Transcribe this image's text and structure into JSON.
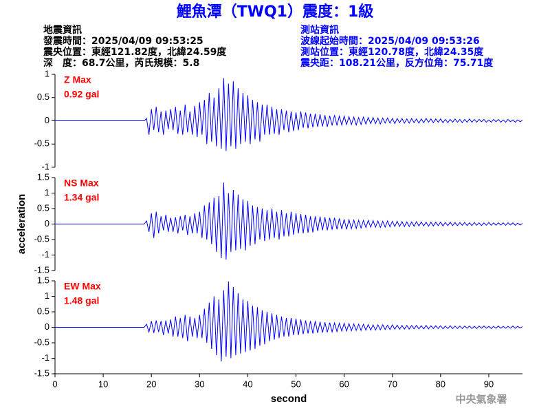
{
  "header": {
    "title": "鯉魚潭（TWQ1）震度：1級",
    "left": [
      "地震資訊",
      "發震時間：2025/04/09 09:53:25",
      "震央位置：東經121.82度，北緯24.59度",
      "深　度：68.7公里，芮氏規模：5.8"
    ],
    "right": [
      "測站資訊",
      "波線起始時間：2025/04/09 09:53:26",
      "測站位置：東經120.78度，北緯24.35度",
      "震央距：108.21公里，反方位角：75.71度"
    ],
    "footer": "中央氣象署"
  },
  "chart_data": [
    {
      "type": "line",
      "color": "#0000ff",
      "annotations": [
        "Z Max",
        "0.92 gal"
      ],
      "xlim": [
        0,
        97
      ],
      "ylim": [
        -1,
        1
      ],
      "yticks": [
        -1,
        -0.5,
        0,
        0.5,
        1
      ],
      "x": [
        0,
        18.5,
        19,
        19.5,
        20,
        20.5,
        21,
        21.5,
        22,
        22.5,
        23,
        23.5,
        24,
        24.5,
        25,
        25.5,
        26,
        26.5,
        27,
        27.5,
        28,
        28.5,
        29,
        29.5,
        30,
        30.5,
        31,
        31.5,
        32,
        32.5,
        33,
        33.5,
        34,
        34.5,
        35,
        35.5,
        36,
        36.5,
        37,
        37.5,
        38,
        38.5,
        39,
        39.5,
        40,
        40.5,
        41,
        41.5,
        42,
        42.5,
        43,
        43.5,
        44,
        44.5,
        45,
        45.5,
        46,
        46.5,
        47,
        47.5,
        48,
        48.5,
        49,
        49.5,
        50,
        50.5,
        51,
        51.5,
        52,
        52.5,
        53,
        53.5,
        54,
        54.5,
        55,
        55.5,
        56,
        56.5,
        57,
        57.5,
        58,
        58.5,
        59,
        59.5,
        60,
        60.5,
        61,
        61.5,
        62,
        62.5,
        63,
        63.5,
        64,
        64.5,
        65,
        65.5,
        66,
        66.5,
        67,
        67.5,
        68,
        68.5,
        69,
        69.5,
        70,
        70.5,
        71,
        71.5,
        72,
        72.5,
        73,
        73.5,
        74,
        74.5,
        75,
        75.5,
        76,
        76.5,
        77,
        77.5,
        78,
        78.5,
        79,
        79.5,
        80,
        80.5,
        81,
        81.5,
        82,
        82.5,
        83,
        83.5,
        84,
        84.5,
        85,
        85.5,
        86,
        86.5,
        87,
        87.5,
        88,
        88.5,
        89,
        89.5,
        90,
        90.5,
        91,
        91.5,
        92,
        92.5,
        93,
        93.5,
        94,
        94.5,
        95,
        95.5,
        96,
        96.5,
        97
      ],
      "values": [
        0,
        0,
        0.05,
        -0.3,
        0.25,
        -0.2,
        0.3,
        -0.25,
        0.2,
        -0.3,
        0.22,
        -0.18,
        0.25,
        -0.2,
        0.3,
        -0.28,
        0.22,
        -0.3,
        0.35,
        -0.25,
        0.2,
        -0.3,
        0.32,
        -0.35,
        0.4,
        -0.3,
        0.45,
        -0.5,
        0.6,
        -0.45,
        0.5,
        -0.55,
        0.7,
        -0.6,
        0.92,
        -0.65,
        0.8,
        -0.55,
        0.85,
        -0.6,
        0.7,
        -0.5,
        0.6,
        -0.45,
        0.55,
        -0.5,
        0.45,
        -0.4,
        0.4,
        -0.45,
        0.35,
        -0.3,
        0.35,
        -0.3,
        0.3,
        -0.28,
        0.25,
        -0.3,
        0.25,
        -0.2,
        0.22,
        -0.25,
        0.2,
        -0.22,
        0.18,
        -0.2,
        0.2,
        -0.15,
        0.18,
        -0.16,
        0.15,
        -0.14,
        0.15,
        -0.13,
        0.14,
        -0.12,
        0.12,
        -0.13,
        0.11,
        -0.1,
        0.12,
        -0.1,
        0.1,
        -0.09,
        0.1,
        -0.08,
        0.09,
        -0.08,
        0.08,
        -0.09,
        0.07,
        -0.08,
        0.08,
        -0.07,
        0.07,
        -0.06,
        0.07,
        -0.06,
        0.06,
        -0.07,
        0.06,
        -0.05,
        0.06,
        -0.05,
        0.05,
        -0.06,
        0.05,
        -0.04,
        0.05,
        -0.05,
        0.04,
        -0.05,
        0.05,
        -0.04,
        0.04,
        -0.05,
        0.04,
        -0.04,
        0.05,
        -0.03,
        0.04,
        -0.04,
        0.04,
        -0.03,
        0.04,
        -0.04,
        0.03,
        -0.04,
        0.03,
        -0.03,
        0.04,
        -0.03,
        0.03,
        -0.04,
        0.03,
        -0.03,
        0.04,
        -0.03,
        0.03,
        -0.03,
        0.03,
        -0.02,
        0.03,
        -0.03,
        0.02,
        -0.03,
        0.03,
        -0.02,
        0.03,
        -0.03,
        0.02,
        -0.03,
        0.03,
        -0.02,
        0.02,
        -0.03,
        0.02,
        -0.02,
        0.01
      ]
    },
    {
      "type": "line",
      "color": "#0000ff",
      "annotations": [
        "NS Max",
        "1.34 gal"
      ],
      "ylabel": "acceleration",
      "xlim": [
        0,
        97
      ],
      "ylim": [
        -1.5,
        1.5
      ],
      "yticks": [
        -1.5,
        -1,
        -0.5,
        0,
        0.5,
        1,
        1.5
      ],
      "x": [
        0,
        18.5,
        19,
        19.5,
        20,
        20.5,
        21,
        21.5,
        22,
        22.5,
        23,
        23.5,
        24,
        24.5,
        25,
        25.5,
        26,
        26.5,
        27,
        27.5,
        28,
        28.5,
        29,
        29.5,
        30,
        30.5,
        31,
        31.5,
        32,
        32.5,
        33,
        33.5,
        34,
        34.5,
        35,
        35.5,
        36,
        36.5,
        37,
        37.5,
        38,
        38.5,
        39,
        39.5,
        40,
        40.5,
        41,
        41.5,
        42,
        42.5,
        43,
        43.5,
        44,
        44.5,
        45,
        45.5,
        46,
        46.5,
        47,
        47.5,
        48,
        48.5,
        49,
        49.5,
        50,
        50.5,
        51,
        51.5,
        52,
        52.5,
        53,
        53.5,
        54,
        54.5,
        55,
        55.5,
        56,
        56.5,
        57,
        57.5,
        58,
        58.5,
        59,
        59.5,
        60,
        60.5,
        61,
        61.5,
        62,
        62.5,
        63,
        63.5,
        64,
        64.5,
        65,
        65.5,
        66,
        66.5,
        67,
        67.5,
        68,
        68.5,
        69,
        69.5,
        70,
        70.5,
        71,
        71.5,
        72,
        72.5,
        73,
        73.5,
        74,
        74.5,
        75,
        75.5,
        76,
        76.5,
        77,
        77.5,
        78,
        78.5,
        79,
        79.5,
        80,
        80.5,
        81,
        81.5,
        82,
        82.5,
        83,
        83.5,
        84,
        84.5,
        85,
        85.5,
        86,
        86.5,
        87,
        87.5,
        88,
        88.5,
        89,
        89.5,
        90,
        90.5,
        91,
        91.5,
        92,
        92.5,
        93,
        93.5,
        94,
        94.5,
        95,
        95.5,
        96,
        96.5,
        97
      ],
      "values": [
        0,
        0,
        0.1,
        -0.25,
        0.35,
        -0.45,
        0.4,
        -0.3,
        0.25,
        -0.2,
        0.3,
        -0.25,
        0.2,
        -0.25,
        0.22,
        -0.3,
        0.25,
        -0.2,
        0.3,
        -0.35,
        0.25,
        -0.3,
        0.35,
        -0.3,
        0.4,
        -0.45,
        0.6,
        -0.5,
        0.7,
        -0.65,
        0.85,
        -0.9,
        0.9,
        -1.1,
        1.34,
        -1.15,
        1.0,
        -0.9,
        1.1,
        -0.85,
        0.95,
        -0.8,
        0.8,
        -0.85,
        0.75,
        -0.7,
        0.6,
        -0.65,
        0.55,
        -0.5,
        0.5,
        -0.55,
        0.45,
        -0.5,
        0.5,
        -0.45,
        0.4,
        -0.5,
        0.45,
        -0.4,
        0.35,
        -0.4,
        0.4,
        -0.35,
        0.35,
        -0.3,
        0.32,
        -0.3,
        0.3,
        -0.28,
        0.25,
        -0.27,
        0.25,
        -0.22,
        0.24,
        -0.2,
        0.22,
        -0.2,
        0.2,
        -0.18,
        0.2,
        -0.17,
        0.18,
        -0.16,
        0.15,
        -0.17,
        0.14,
        -0.15,
        0.13,
        -0.14,
        0.12,
        -0.13,
        0.12,
        -0.11,
        0.12,
        -0.1,
        0.11,
        -0.1,
        0.1,
        -0.11,
        0.09,
        -0.1,
        0.1,
        -0.09,
        0.09,
        -0.08,
        0.09,
        -0.08,
        0.08,
        -0.08,
        0.07,
        -0.08,
        0.07,
        -0.07,
        0.08,
        -0.06,
        0.07,
        -0.06,
        0.06,
        -0.07,
        0.06,
        -0.06,
        0.06,
        -0.05,
        0.06,
        -0.06,
        0.05,
        -0.05,
        0.06,
        -0.05,
        0.05,
        -0.05,
        0.05,
        -0.04,
        0.05,
        -0.05,
        0.04,
        -0.05,
        0.05,
        -0.04,
        0.04,
        -0.05,
        0.04,
        -0.04,
        0.05,
        -0.04,
        0.04,
        -0.04,
        0.04,
        -0.03,
        0.04,
        -0.04,
        0.04,
        -0.03,
        0.04,
        -0.04,
        0.03,
        -0.03,
        0.02
      ]
    },
    {
      "type": "line",
      "color": "#0000ff",
      "annotations": [
        "EW Max",
        "1.48 gal"
      ],
      "xlabel": "second",
      "xlim": [
        0,
        97
      ],
      "xticks": [
        0,
        10,
        20,
        30,
        40,
        50,
        60,
        70,
        80,
        90
      ],
      "ylim": [
        -1.5,
        1.5
      ],
      "yticks": [
        -1.5,
        -1,
        -0.5,
        0,
        0.5,
        1,
        1.5
      ],
      "x": [
        0,
        18.5,
        19,
        19.5,
        20,
        20.5,
        21,
        21.5,
        22,
        22.5,
        23,
        23.5,
        24,
        24.5,
        25,
        25.5,
        26,
        26.5,
        27,
        27.5,
        28,
        28.5,
        29,
        29.5,
        30,
        30.5,
        31,
        31.5,
        32,
        32.5,
        33,
        33.5,
        34,
        34.5,
        35,
        35.5,
        36,
        36.5,
        37,
        37.5,
        38,
        38.5,
        39,
        39.5,
        40,
        40.5,
        41,
        41.5,
        42,
        42.5,
        43,
        43.5,
        44,
        44.5,
        45,
        45.5,
        46,
        46.5,
        47,
        47.5,
        48,
        48.5,
        49,
        49.5,
        50,
        50.5,
        51,
        51.5,
        52,
        52.5,
        53,
        53.5,
        54,
        54.5,
        55,
        55.5,
        56,
        56.5,
        57,
        57.5,
        58,
        58.5,
        59,
        59.5,
        60,
        60.5,
        61,
        61.5,
        62,
        62.5,
        63,
        63.5,
        64,
        64.5,
        65,
        65.5,
        66,
        66.5,
        67,
        67.5,
        68,
        68.5,
        69,
        69.5,
        70,
        70.5,
        71,
        71.5,
        72,
        72.5,
        73,
        73.5,
        74,
        74.5,
        75,
        75.5,
        76,
        76.5,
        77,
        77.5,
        78,
        78.5,
        79,
        79.5,
        80,
        80.5,
        81,
        81.5,
        82,
        82.5,
        83,
        83.5,
        84,
        84.5,
        85,
        85.5,
        86,
        86.5,
        87,
        87.5,
        88,
        88.5,
        89,
        89.5,
        90,
        90.5,
        91,
        91.5,
        92,
        92.5,
        93,
        93.5,
        94,
        94.5,
        95,
        95.5,
        96,
        96.5,
        97
      ],
      "values": [
        0,
        0,
        0.1,
        -0.15,
        0.2,
        -0.18,
        0.22,
        -0.15,
        0.2,
        -0.25,
        0.22,
        -0.2,
        0.25,
        -0.3,
        0.35,
        -0.3,
        0.3,
        -0.35,
        0.4,
        -0.45,
        0.35,
        -0.3,
        0.3,
        -0.35,
        0.4,
        -0.35,
        0.6,
        -0.5,
        0.8,
        -0.7,
        1.0,
        -0.9,
        0.9,
        -1.1,
        1.2,
        -0.95,
        1.48,
        -1.0,
        1.3,
        -0.9,
        1.1,
        -0.85,
        0.9,
        -0.8,
        0.85,
        -0.75,
        0.7,
        -0.7,
        0.65,
        -0.6,
        0.55,
        -0.55,
        0.5,
        -0.45,
        0.45,
        -0.4,
        0.4,
        -0.35,
        0.35,
        -0.3,
        0.3,
        -0.3,
        0.3,
        -0.25,
        0.28,
        -0.25,
        0.25,
        -0.22,
        0.22,
        -0.2,
        0.2,
        -0.2,
        0.2,
        -0.18,
        0.18,
        -0.17,
        0.16,
        -0.16,
        0.15,
        -0.15,
        0.14,
        -0.14,
        0.13,
        -0.12,
        0.13,
        -0.12,
        0.12,
        -0.11,
        0.11,
        -0.1,
        0.1,
        -0.1,
        0.1,
        -0.09,
        0.09,
        -0.09,
        0.08,
        -0.09,
        0.08,
        -0.08,
        0.08,
        -0.07,
        0.07,
        -0.07,
        0.08,
        -0.06,
        0.07,
        -0.06,
        0.06,
        -0.06,
        0.06,
        -0.06,
        0.06,
        -0.05,
        0.06,
        -0.05,
        0.05,
        -0.05,
        0.06,
        -0.05,
        0.05,
        -0.04,
        0.05,
        -0.04,
        0.05,
        -0.05,
        0.04,
        -0.04,
        0.05,
        -0.04,
        0.04,
        -0.04,
        0.04,
        -0.04,
        0.04,
        -0.03,
        0.04,
        -0.04,
        0.03,
        -0.04,
        0.04,
        -0.03,
        0.04,
        -0.03,
        0.03,
        -0.04,
        0.03,
        -0.03,
        0.04,
        -0.03,
        0.03,
        -0.03,
        0.03,
        -0.03,
        0.04,
        -0.03,
        0.03,
        -0.02,
        0.02
      ]
    }
  ]
}
